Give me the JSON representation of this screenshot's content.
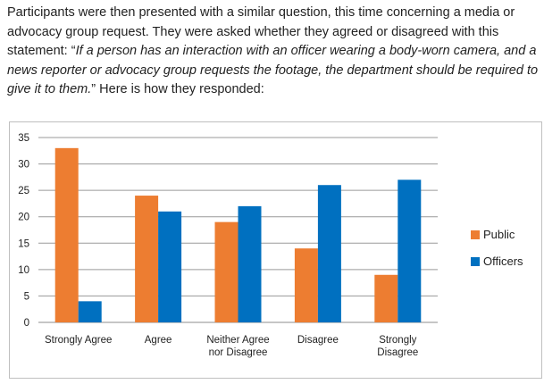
{
  "intro": {
    "line1": "Participants were then presented with a similar question, this time concerning a media or",
    "line2": "advocacy group request.  They were asked whether they agreed or disagreed with this",
    "line3_prefix": "statement: “",
    "line3_italic": "If a person has an interaction with an officer wearing a body-worn camera, and a",
    "line4_italic": "news reporter or advocacy group requests the footage, the department should be required to",
    "line5_italic": "give it to them.",
    "line5_rest": "”  Here is how they responded:"
  },
  "chart_data": {
    "type": "bar",
    "categories": [
      [
        "Strongly Agree"
      ],
      [
        "Agree"
      ],
      [
        "Neither Agree",
        "nor Disagree"
      ],
      [
        "Disagree"
      ],
      [
        "Strongly",
        "Disagree"
      ]
    ],
    "series": [
      {
        "name": "Public",
        "values": [
          33,
          24,
          19,
          14,
          9
        ],
        "color": "#ED7D31"
      },
      {
        "name": "Officers",
        "values": [
          4,
          21,
          22,
          26,
          27
        ],
        "color": "#0070C0"
      }
    ],
    "ylim": [
      0,
      35
    ],
    "yticks": [
      0,
      5,
      10,
      15,
      20,
      25,
      30,
      35
    ],
    "grid": true,
    "legend_position": "right"
  }
}
